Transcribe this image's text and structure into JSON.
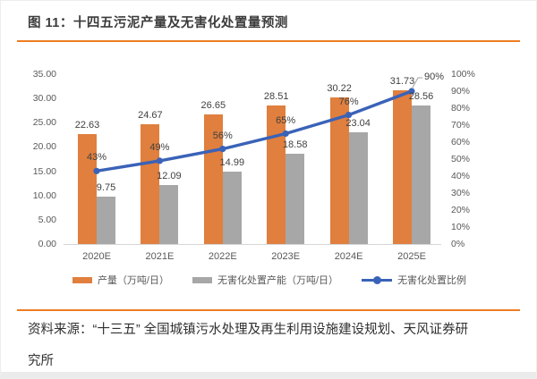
{
  "figure": {
    "title": "图 11：十四五污泥产量及无害化处置量预测",
    "source": "资料来源：“十三五” 全国城镇污水处理及再生利用设施建设规划、天风证券研究所"
  },
  "colors": {
    "accent_rule": "#ED7D23",
    "bar_production": "#E07F3E",
    "bar_capacity": "#A7A7A7",
    "line_ratio": "#3A62B8",
    "axis_text": "#595959",
    "label_text": "#404040",
    "axis_line": "#D6D6D6",
    "leader_line": "#A0A0A0"
  },
  "chart_data": {
    "type": "bar+line",
    "categories": [
      "2020E",
      "2021E",
      "2022E",
      "2023E",
      "2024E",
      "2025E"
    ],
    "series": [
      {
        "name": "产量（万吨/日）",
        "kind": "bar",
        "axis": "left",
        "color": "#E07F3E",
        "values": [
          22.63,
          24.67,
          26.65,
          28.51,
          30.22,
          31.73
        ],
        "labels": [
          "22.63",
          "24.67",
          "26.65",
          "28.51",
          "30.22",
          "31.73"
        ]
      },
      {
        "name": "无害化处置产能（万吨/日）",
        "kind": "bar",
        "axis": "left",
        "color": "#A7A7A7",
        "values": [
          9.75,
          12.09,
          14.99,
          18.58,
          23.04,
          28.56
        ],
        "labels": [
          "9.75",
          "12.09",
          "14.99",
          "18.58",
          "23.04",
          "28.56"
        ]
      },
      {
        "name": "无害化处置比例",
        "kind": "line",
        "axis": "right",
        "color": "#3A62B8",
        "values": [
          43,
          49,
          56,
          65,
          76,
          90
        ],
        "labels": [
          "43%",
          "49%",
          "56%",
          "65%",
          "76%",
          "90%"
        ]
      }
    ],
    "left_axis": {
      "min": 0,
      "max": 35,
      "ticks": [
        "35.00",
        "30.00",
        "25.00",
        "20.00",
        "15.00",
        "10.00",
        "5.00",
        "0.00"
      ]
    },
    "right_axis": {
      "min": 0,
      "max": 100,
      "ticks": [
        "100%",
        "90%",
        "80%",
        "70%",
        "60%",
        "50%",
        "40%",
        "30%",
        "20%",
        "10%",
        "0%"
      ]
    },
    "legend_position": "bottom",
    "gridlines": false
  }
}
